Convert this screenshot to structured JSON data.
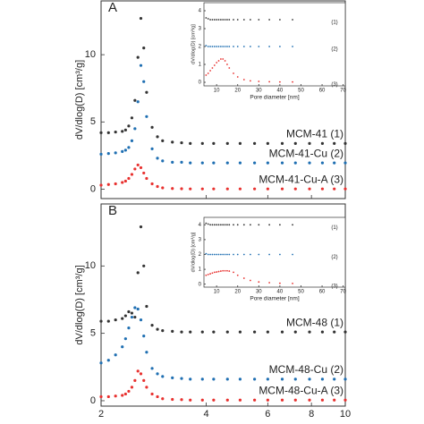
{
  "chart_data": [
    {
      "type": "scatter",
      "label": "A",
      "ylabel": "dV/dlog(D) [cm³/g]",
      "log_x": true,
      "show_xtick_labels": false,
      "xlim": [
        2,
        10
      ],
      "xticks": [
        2,
        4,
        6,
        8,
        10
      ],
      "ylim": [
        -0.7,
        14
      ],
      "yticks": [
        0,
        5,
        10
      ],
      "x": [
        2.0,
        2.1,
        2.2,
        2.3,
        2.35,
        2.4,
        2.45,
        2.5,
        2.55,
        2.6,
        2.65,
        2.7,
        2.8,
        2.9,
        3.0,
        3.2,
        3.4,
        3.6,
        3.9,
        4.2,
        4.6,
        5.0,
        5.5,
        6.0,
        6.6,
        7.2,
        7.9,
        8.6,
        9.3,
        10.0
      ],
      "series": [
        {
          "name": "MCM-41 (1)",
          "color": "#333333",
          "values": [
            4.2,
            4.2,
            4.25,
            4.3,
            4.4,
            4.7,
            5.3,
            6.6,
            9.8,
            12.7,
            10.5,
            7.2,
            4.6,
            3.9,
            3.6,
            3.5,
            3.45,
            3.4,
            3.4,
            3.4,
            3.4,
            3.4,
            3.4,
            3.4,
            3.4,
            3.4,
            3.4,
            3.4,
            3.4,
            3.4
          ]
        },
        {
          "name": "MCM-41-Cu (2)",
          "color": "#1f6fb2",
          "values": [
            2.6,
            2.65,
            2.7,
            2.8,
            2.9,
            3.1,
            3.6,
            4.5,
            6.5,
            9.2,
            8.0,
            5.4,
            3.0,
            2.3,
            2.1,
            2.0,
            2.0,
            1.95,
            1.95,
            1.95,
            1.95,
            1.95,
            1.95,
            1.95,
            1.95,
            1.95,
            1.95,
            1.95,
            1.95,
            1.95
          ]
        },
        {
          "name": "MCM-41-Cu-A (3)",
          "color": "#e8312f",
          "values": [
            0.3,
            0.35,
            0.4,
            0.5,
            0.6,
            0.8,
            1.1,
            1.5,
            1.8,
            1.6,
            1.2,
            0.8,
            0.4,
            0.2,
            0.1,
            0.05,
            0.03,
            0.02,
            0.02,
            0.02,
            0.02,
            0.02,
            0.02,
            0.02,
            0.02,
            0.02,
            0.02,
            0.02,
            0.02,
            0.02
          ]
        }
      ]
    },
    {
      "type": "scatter",
      "xlabel": "Pore diameter [nm]",
      "ylabel": "dV/dlog(D) [cm³/g]",
      "log_x": false,
      "show_xtick_labels": true,
      "xlim": [
        4,
        71
      ],
      "xticks": [
        10,
        20,
        30,
        40,
        50,
        60,
        70
      ],
      "ylim": [
        -0.2,
        4.45
      ],
      "yticks": [
        0,
        1,
        2,
        3,
        4
      ],
      "x": [
        5,
        6,
        7,
        8,
        9,
        10,
        11,
        12,
        13,
        14,
        15,
        16,
        18,
        20,
        23,
        26,
        30,
        35,
        40,
        46
      ],
      "series": [
        {
          "name": "(1)",
          "color": "#333333",
          "values": [
            3.6,
            3.55,
            3.5,
            3.5,
            3.5,
            3.5,
            3.5,
            3.5,
            3.5,
            3.5,
            3.5,
            3.5,
            3.5,
            3.5,
            3.5,
            3.5,
            3.5,
            3.5,
            3.5,
            3.5
          ]
        },
        {
          "name": "(2)",
          "color": "#1f6fb2",
          "values": [
            2.05,
            2.0,
            2.0,
            2.0,
            2.0,
            2.0,
            2.0,
            2.0,
            2.0,
            2.0,
            2.0,
            2.0,
            2.0,
            2.0,
            2.0,
            2.0,
            2.0,
            2.0,
            2.0,
            2.0
          ]
        },
        {
          "name": "(3)",
          "color": "#e8312f",
          "values": [
            0.4,
            0.5,
            0.65,
            0.8,
            0.95,
            1.1,
            1.2,
            1.3,
            1.3,
            1.2,
            1.0,
            0.8,
            0.5,
            0.3,
            0.15,
            0.08,
            0.05,
            0.03,
            0.02,
            0.02
          ]
        }
      ]
    },
    {
      "type": "scatter",
      "label": "B",
      "ylabel": "dV/dlog(D) [cm³/g]",
      "log_x": true,
      "show_xtick_labels": true,
      "xlim": [
        2,
        10
      ],
      "xticks": [
        2,
        4,
        6,
        8,
        10
      ],
      "ylim": [
        -0.4,
        14.6
      ],
      "yticks": [
        0,
        5,
        10
      ],
      "x": [
        2.0,
        2.1,
        2.2,
        2.3,
        2.35,
        2.4,
        2.45,
        2.5,
        2.55,
        2.6,
        2.65,
        2.7,
        2.8,
        2.9,
        3.0,
        3.2,
        3.4,
        3.6,
        3.9,
        4.2,
        4.6,
        5.0,
        5.5,
        6.0,
        6.6,
        7.2,
        7.9,
        8.6,
        9.3,
        10.0
      ],
      "series": [
        {
          "name": "MCM-48 (1)",
          "color": "#333333",
          "values": [
            5.9,
            5.9,
            6.0,
            6.1,
            6.3,
            6.6,
            6.5,
            6.2,
            9.5,
            12.9,
            10.0,
            7.0,
            5.6,
            5.3,
            5.2,
            5.15,
            5.1,
            5.1,
            5.1,
            5.1,
            5.1,
            5.1,
            5.1,
            5.1,
            5.1,
            5.1,
            5.1,
            5.1,
            5.1,
            5.1
          ]
        },
        {
          "name": "MCM-48-Cu (2)",
          "color": "#1f6fb2",
          "values": [
            2.8,
            3.0,
            3.4,
            4.0,
            4.6,
            5.4,
            6.2,
            6.9,
            6.8,
            6.0,
            4.8,
            3.6,
            2.4,
            2.0,
            1.8,
            1.7,
            1.65,
            1.6,
            1.6,
            1.6,
            1.6,
            1.6,
            1.6,
            1.6,
            1.6,
            1.6,
            1.6,
            1.6,
            1.6,
            1.6
          ]
        },
        {
          "name": "MCM-48-Cu-A (3)",
          "color": "#e8312f",
          "values": [
            0.3,
            0.3,
            0.35,
            0.4,
            0.5,
            0.7,
            1.0,
            1.5,
            2.2,
            2.0,
            1.5,
            1.0,
            0.5,
            0.3,
            0.15,
            0.1,
            0.08,
            0.05,
            0.05,
            0.05,
            0.05,
            0.05,
            0.05,
            0.05,
            0.05,
            0.05,
            0.05,
            0.05,
            0.05,
            0.05
          ]
        }
      ]
    },
    {
      "type": "scatter",
      "xlabel": "Pore diameter [nm]",
      "ylabel": "dV/dlog(D) [cm³/g]",
      "log_x": false,
      "show_xtick_labels": true,
      "xlim": [
        4,
        71
      ],
      "xticks": [
        10,
        20,
        30,
        40,
        50,
        60,
        70
      ],
      "ylim": [
        -0.2,
        4.5
      ],
      "yticks": [
        0,
        1,
        2,
        3,
        4
      ],
      "x": [
        5,
        6,
        7,
        8,
        9,
        10,
        11,
        12,
        13,
        14,
        15,
        16,
        18,
        20,
        23,
        26,
        30,
        35,
        40,
        46
      ],
      "series": [
        {
          "name": "(1)",
          "color": "#333333",
          "values": [
            4.1,
            4.05,
            4.0,
            4.0,
            4.0,
            4.0,
            4.0,
            4.0,
            4.0,
            4.0,
            4.0,
            4.0,
            4.0,
            4.0,
            4.0,
            4.0,
            4.0,
            4.0,
            4.0,
            4.0
          ]
        },
        {
          "name": "(2)",
          "color": "#1f6fb2",
          "values": [
            2.05,
            2.0,
            2.0,
            2.0,
            2.0,
            2.0,
            2.0,
            2.0,
            2.0,
            2.0,
            2.0,
            2.0,
            2.0,
            2.0,
            2.0,
            2.0,
            2.0,
            2.0,
            2.0,
            2.0
          ]
        },
        {
          "name": "(3)",
          "color": "#e8312f",
          "values": [
            0.6,
            0.65,
            0.7,
            0.75,
            0.8,
            0.82,
            0.85,
            0.88,
            0.9,
            0.9,
            0.9,
            0.88,
            0.8,
            0.6,
            0.4,
            0.25,
            0.15,
            0.1,
            0.06,
            0.05
          ]
        }
      ]
    }
  ]
}
